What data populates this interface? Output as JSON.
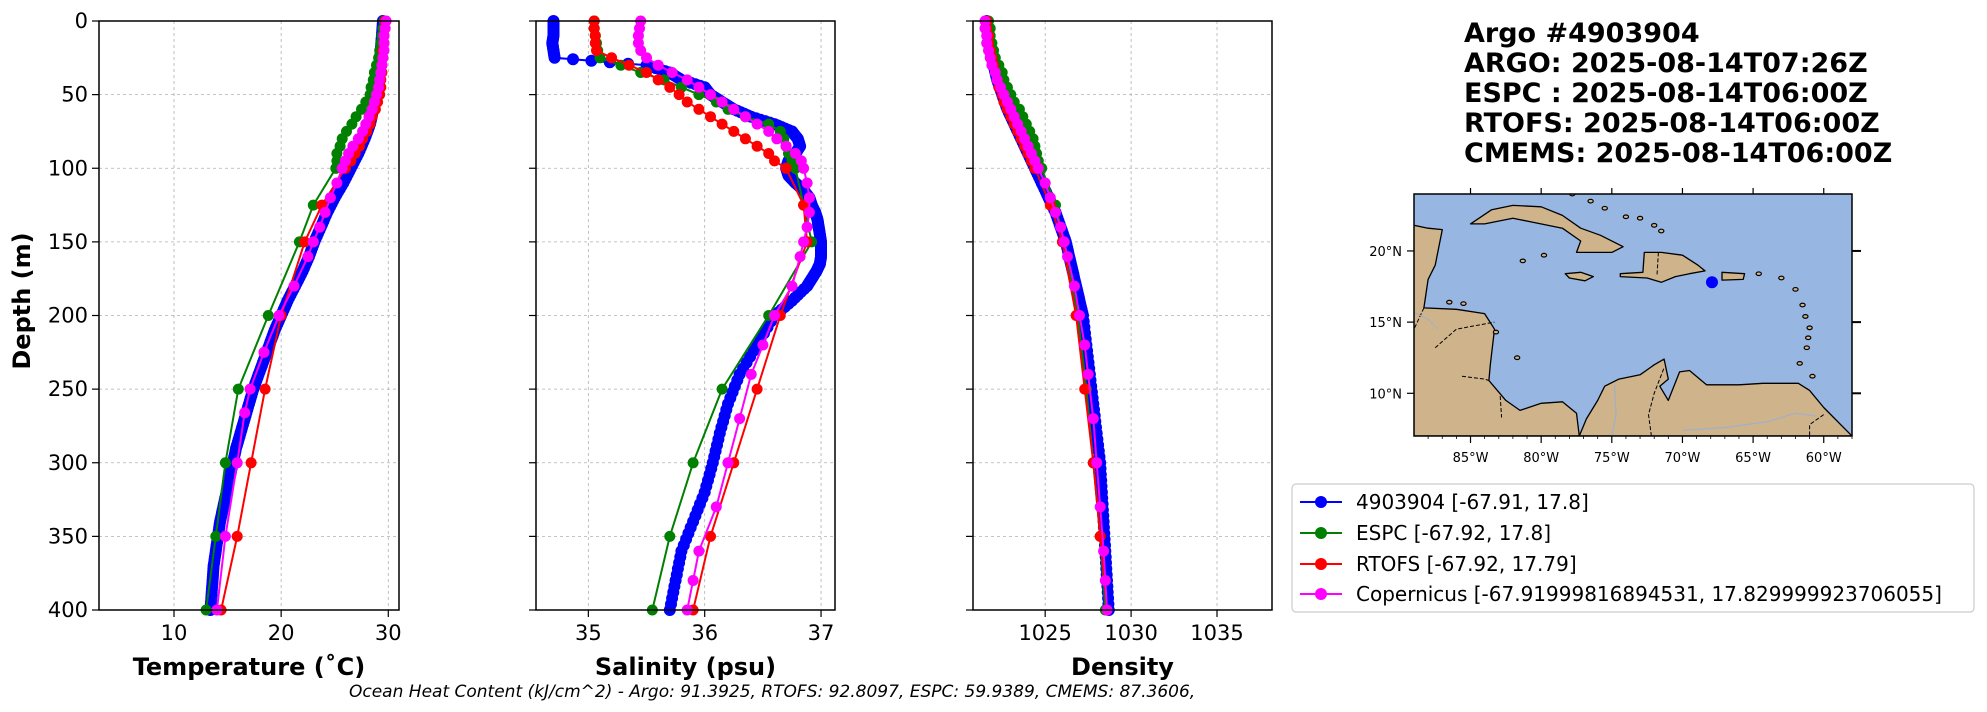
{
  "figure": {
    "title_lines": [
      "Argo #4903904",
      "ARGO: 2025-08-14T07:26Z",
      "ESPC : 2025-08-14T06:00Z",
      "RTOFS: 2025-08-14T06:00Z",
      "CMEMS: 2025-08-14T06:00Z"
    ],
    "footer": "Ocean Heat Content (kJ/cm^2) - Argo: 91.3925,  RTOFS: 92.8097,  ESPC: 59.9389,  CMEMS: 87.3606,",
    "ylabel": "Depth (m)",
    "legend": [
      {
        "label": "4903904 [-67.91, 17.8]",
        "color": "#0000ff"
      },
      {
        "label": "ESPC [-67.92, 17.8]",
        "color": "#008000"
      },
      {
        "label": "RTOFS [-67.92, 17.79]",
        "color": "#ff0000"
      },
      {
        "label": "Copernicus [-67.91999816894531, 17.829999923706055]",
        "color": "#ff00ff"
      }
    ],
    "map": {
      "lat_labels": [
        "20°N",
        "15°N",
        "10°N"
      ],
      "lon_labels": [
        "85°W",
        "80°W",
        "75°W",
        "70°W",
        "65°W",
        "60°W"
      ],
      "float_position": {
        "lon": -67.91,
        "lat": 17.8
      },
      "lon_range": [
        -89,
        -58
      ],
      "lat_range": [
        7,
        24
      ],
      "ocean_color": "#97b6e1",
      "land_color": "#cfb38b"
    }
  },
  "chart_data": [
    {
      "type": "line",
      "xlabel": "Temperature (˚C)",
      "ylabel": "Depth (m)",
      "xlim": [
        3,
        31
      ],
      "ylim": [
        400,
        0
      ],
      "xticks": [
        10,
        20,
        30
      ],
      "yticks": [
        0,
        50,
        100,
        150,
        200,
        250,
        300,
        350,
        400
      ],
      "series": [
        {
          "name": "4903904",
          "color": "#0000ff",
          "style": "thick",
          "depth": [
            0,
            10,
            20,
            30,
            40,
            50,
            60,
            70,
            80,
            90,
            100,
            110,
            120,
            130,
            140,
            150,
            160,
            170,
            180,
            190,
            200,
            210,
            220,
            230,
            240,
            250,
            260,
            270,
            280,
            290,
            300,
            310,
            320,
            330,
            340,
            350,
            360,
            370,
            380,
            390,
            400
          ],
          "values": [
            29.5,
            29.4,
            29.3,
            29.2,
            29.0,
            28.8,
            28.6,
            28.3,
            27.8,
            27.2,
            26.5,
            25.8,
            25.0,
            24.3,
            23.7,
            23.1,
            22.6,
            22.0,
            21.3,
            20.6,
            20.0,
            19.4,
            18.9,
            18.4,
            17.9,
            17.4,
            17.0,
            16.6,
            16.2,
            15.8,
            15.5,
            15.2,
            14.9,
            14.6,
            14.3,
            14.1,
            13.9,
            13.7,
            13.6,
            13.5,
            13.4
          ]
        },
        {
          "name": "ESPC",
          "color": "#008000",
          "depth": [
            0,
            5,
            10,
            15,
            20,
            25,
            30,
            35,
            40,
            45,
            50,
            55,
            60,
            65,
            70,
            75,
            80,
            85,
            90,
            95,
            100,
            125,
            150,
            200,
            250,
            300,
            350,
            400
          ],
          "values": [
            29.6,
            29.5,
            29.4,
            29.3,
            29.2,
            29.1,
            28.9,
            28.7,
            28.6,
            28.4,
            28.3,
            27.9,
            27.5,
            27.0,
            26.6,
            26.1,
            25.7,
            25.5,
            25.2,
            25.2,
            25.1,
            23.0,
            21.7,
            18.8,
            16.0,
            14.8,
            13.9,
            13.0
          ]
        },
        {
          "name": "RTOFS",
          "color": "#ff0000",
          "depth": [
            0,
            5,
            10,
            15,
            20,
            25,
            30,
            35,
            40,
            45,
            50,
            55,
            60,
            65,
            70,
            75,
            80,
            85,
            90,
            95,
            100,
            125,
            150,
            200,
            250,
            300,
            350,
            400
          ],
          "values": [
            29.7,
            29.7,
            29.6,
            29.6,
            29.5,
            29.5,
            29.4,
            29.4,
            29.3,
            29.3,
            29.2,
            29.0,
            28.8,
            28.5,
            28.3,
            28.0,
            27.6,
            27.3,
            26.9,
            26.5,
            26.0,
            23.8,
            22.2,
            20.0,
            18.5,
            17.2,
            15.9,
            14.4
          ]
        },
        {
          "name": "Copernicus",
          "color": "#ff00ff",
          "depth": [
            0,
            5,
            10,
            15,
            20,
            25,
            30,
            35,
            40,
            45,
            50,
            55,
            60,
            65,
            70,
            75,
            80,
            85,
            90,
            95,
            100,
            110,
            120,
            130,
            140,
            150,
            160,
            180,
            200,
            225,
            250,
            266,
            300,
            350,
            400
          ],
          "values": [
            29.8,
            29.7,
            29.6,
            29.6,
            29.6,
            29.5,
            29.4,
            29.3,
            29.2,
            29.1,
            28.9,
            28.7,
            28.5,
            28.2,
            27.9,
            27.6,
            27.2,
            26.7,
            26.3,
            26.0,
            25.7,
            25.2,
            24.6,
            24.1,
            23.6,
            23.0,
            22.5,
            21.2,
            19.8,
            18.4,
            17.1,
            16.6,
            15.9,
            14.8,
            14.0
          ]
        }
      ]
    },
    {
      "type": "line",
      "xlabel": "Salinity (psu)",
      "ylabel": "",
      "xlim": [
        34.55,
        37.12
      ],
      "ylim": [
        400,
        0
      ],
      "xticks": [
        35,
        36,
        37
      ],
      "yticks": [
        0,
        50,
        100,
        150,
        200,
        250,
        300,
        350,
        400
      ],
      "series": [
        {
          "name": "4903904",
          "color": "#0000ff",
          "style": "thick",
          "depth": [
            0,
            5,
            10,
            15,
            20,
            25,
            30,
            35,
            40,
            45,
            50,
            55,
            60,
            65,
            70,
            75,
            80,
            85,
            90,
            95,
            100,
            105,
            110,
            115,
            120,
            125,
            130,
            135,
            140,
            145,
            150,
            155,
            160,
            165,
            170,
            175,
            180,
            190,
            200,
            220,
            240,
            260,
            280,
            300,
            320,
            340,
            360,
            380,
            400
          ],
          "values": [
            34.7,
            34.7,
            34.7,
            34.69,
            34.7,
            34.71,
            35.5,
            35.7,
            35.8,
            36.0,
            36.05,
            36.15,
            36.25,
            36.4,
            36.6,
            36.75,
            36.8,
            36.82,
            36.78,
            36.72,
            36.7,
            36.72,
            36.78,
            36.85,
            36.9,
            36.92,
            36.95,
            36.97,
            36.98,
            36.99,
            37.0,
            37.0,
            37.0,
            36.99,
            36.96,
            36.92,
            36.88,
            36.75,
            36.6,
            36.45,
            36.3,
            36.2,
            36.13,
            36.07,
            36.0,
            35.9,
            35.8,
            35.75,
            35.7
          ]
        },
        {
          "name": "ESPC",
          "color": "#008000",
          "depth": [
            0,
            5,
            10,
            15,
            20,
            25,
            30,
            35,
            40,
            45,
            50,
            55,
            60,
            65,
            70,
            75,
            80,
            85,
            90,
            95,
            100,
            125,
            150,
            200,
            250,
            300,
            350,
            400
          ],
          "values": [
            35.05,
            35.05,
            35.06,
            35.07,
            35.08,
            35.1,
            35.28,
            35.45,
            35.65,
            35.8,
            35.95,
            36.1,
            36.2,
            36.35,
            36.55,
            36.65,
            36.68,
            36.7,
            36.72,
            36.75,
            36.78,
            36.85,
            36.92,
            36.55,
            36.15,
            35.9,
            35.7,
            35.55
          ]
        },
        {
          "name": "RTOFS",
          "color": "#ff0000",
          "depth": [
            0,
            5,
            10,
            15,
            20,
            25,
            30,
            35,
            40,
            45,
            50,
            55,
            60,
            65,
            70,
            75,
            80,
            85,
            90,
            95,
            100,
            125,
            150,
            200,
            250,
            300,
            350,
            400
          ],
          "values": [
            35.05,
            35.05,
            35.06,
            35.06,
            35.07,
            35.2,
            35.35,
            35.5,
            35.6,
            35.7,
            35.78,
            35.85,
            35.95,
            36.05,
            36.15,
            36.25,
            36.35,
            36.45,
            36.55,
            36.6,
            36.7,
            36.85,
            36.88,
            36.65,
            36.45,
            36.25,
            36.05,
            35.9
          ]
        },
        {
          "name": "Copernicus",
          "color": "#ff00ff",
          "depth": [
            0,
            5,
            10,
            15,
            20,
            25,
            30,
            35,
            40,
            45,
            50,
            55,
            60,
            65,
            70,
            75,
            80,
            85,
            90,
            95,
            100,
            110,
            120,
            130,
            140,
            150,
            160,
            180,
            200,
            220,
            240,
            270,
            300,
            330,
            360,
            380,
            400
          ],
          "values": [
            35.45,
            35.44,
            35.43,
            35.43,
            35.45,
            35.5,
            35.6,
            35.72,
            35.85,
            35.95,
            36.05,
            36.15,
            36.25,
            36.35,
            36.45,
            36.55,
            36.62,
            36.7,
            36.78,
            36.83,
            36.85,
            36.88,
            36.9,
            36.9,
            36.88,
            36.85,
            36.82,
            36.75,
            36.6,
            36.5,
            36.4,
            36.3,
            36.2,
            36.1,
            35.95,
            35.9,
            35.85
          ]
        }
      ]
    },
    {
      "type": "line",
      "xlabel": "Density",
      "ylabel": "",
      "xlim": [
        1020.8,
        1038.2
      ],
      "ylim": [
        400,
        0
      ],
      "xticks": [
        1025,
        1030,
        1035
      ],
      "yticks": [
        0,
        50,
        100,
        150,
        200,
        250,
        300,
        350,
        400
      ],
      "series": [
        {
          "name": "4903904",
          "color": "#0000ff",
          "style": "thick",
          "depth": [
            0,
            10,
            20,
            30,
            40,
            50,
            60,
            70,
            80,
            90,
            100,
            110,
            120,
            130,
            140,
            150,
            160,
            170,
            180,
            190,
            200,
            220,
            240,
            260,
            280,
            300,
            320,
            340,
            360,
            380,
            400
          ],
          "values": [
            1021.6,
            1021.7,
            1021.8,
            1022.0,
            1022.2,
            1022.5,
            1022.8,
            1023.2,
            1023.6,
            1024.0,
            1024.4,
            1024.8,
            1025.2,
            1025.6,
            1025.9,
            1026.2,
            1026.4,
            1026.6,
            1026.8,
            1027.0,
            1027.2,
            1027.4,
            1027.6,
            1027.8,
            1028.0,
            1028.2,
            1028.3,
            1028.4,
            1028.5,
            1028.6,
            1028.7
          ]
        },
        {
          "name": "ESPC",
          "color": "#008000",
          "depth": [
            0,
            5,
            10,
            15,
            20,
            25,
            30,
            35,
            40,
            45,
            50,
            55,
            60,
            65,
            70,
            75,
            80,
            85,
            90,
            95,
            100,
            125,
            150,
            200,
            250,
            300,
            350,
            400
          ],
          "values": [
            1021.7,
            1021.8,
            1021.8,
            1021.9,
            1022.0,
            1022.1,
            1022.3,
            1022.5,
            1022.6,
            1022.8,
            1023.0,
            1023.2,
            1023.5,
            1023.7,
            1023.9,
            1024.1,
            1024.3,
            1024.4,
            1024.5,
            1024.6,
            1024.8,
            1025.6,
            1026.1,
            1026.9,
            1027.4,
            1027.8,
            1028.2,
            1028.5
          ]
        },
        {
          "name": "RTOFS",
          "color": "#ff0000",
          "depth": [
            0,
            5,
            10,
            15,
            20,
            25,
            30,
            35,
            40,
            45,
            50,
            55,
            60,
            65,
            70,
            75,
            80,
            85,
            90,
            95,
            100,
            125,
            150,
            200,
            250,
            300,
            350,
            400
          ],
          "values": [
            1021.6,
            1021.6,
            1021.7,
            1021.7,
            1021.8,
            1021.9,
            1022.0,
            1022.1,
            1022.2,
            1022.3,
            1022.5,
            1022.6,
            1022.8,
            1023.0,
            1023.2,
            1023.4,
            1023.6,
            1023.8,
            1024.0,
            1024.2,
            1024.4,
            1025.3,
            1026.0,
            1026.8,
            1027.3,
            1027.8,
            1028.2,
            1028.6
          ]
        },
        {
          "name": "Copernicus",
          "color": "#ff00ff",
          "depth": [
            0,
            5,
            10,
            15,
            20,
            25,
            30,
            35,
            40,
            45,
            50,
            55,
            60,
            65,
            70,
            75,
            80,
            85,
            90,
            95,
            100,
            110,
            120,
            130,
            140,
            150,
            160,
            180,
            200,
            220,
            240,
            270,
            300,
            330,
            360,
            380,
            400
          ],
          "values": [
            1021.5,
            1021.5,
            1021.6,
            1021.6,
            1021.7,
            1021.8,
            1021.9,
            1022.1,
            1022.2,
            1022.4,
            1022.6,
            1022.8,
            1023.0,
            1023.2,
            1023.4,
            1023.6,
            1023.8,
            1024.0,
            1024.2,
            1024.4,
            1024.6,
            1025.0,
            1025.3,
            1025.6,
            1025.9,
            1026.1,
            1026.3,
            1026.7,
            1027.0,
            1027.3,
            1027.5,
            1027.8,
            1028.0,
            1028.2,
            1028.4,
            1028.5,
            1028.6
          ]
        }
      ]
    }
  ]
}
